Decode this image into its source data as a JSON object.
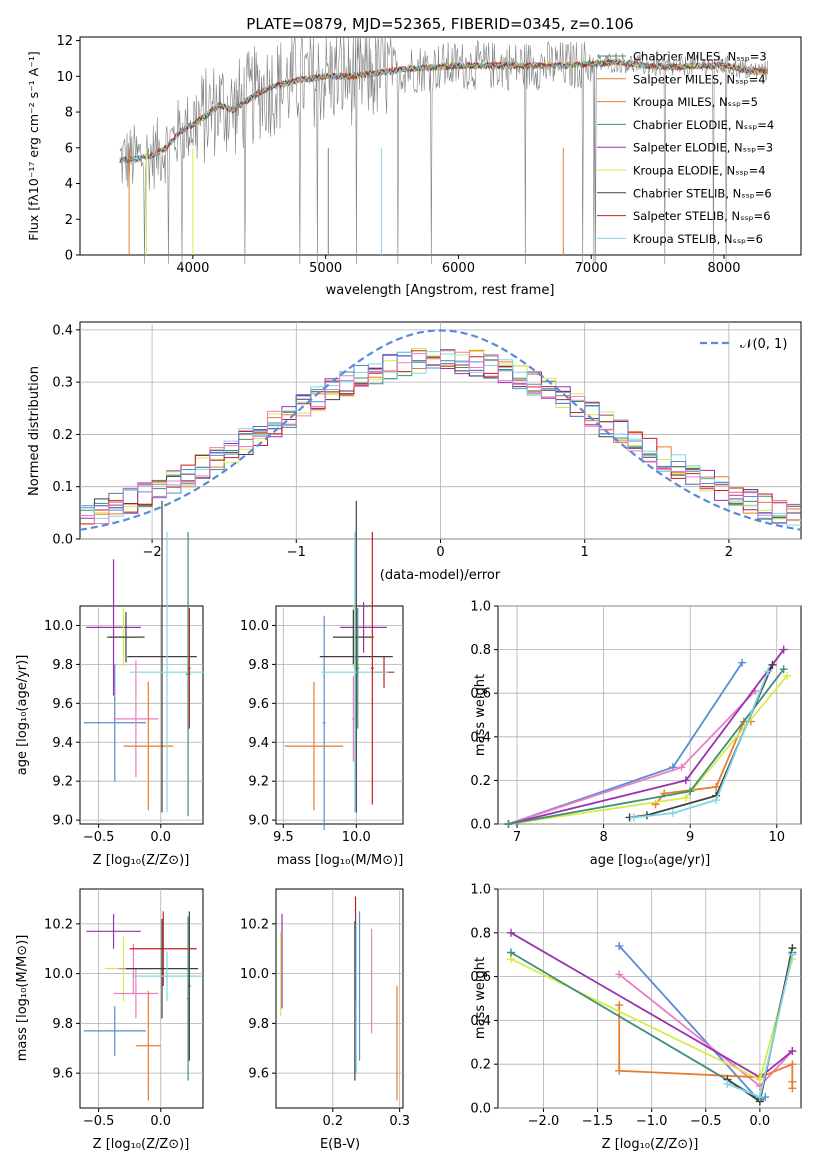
{
  "figure_title": "PLATE=0879, MJD=52365, FIBERID=0345, z=0.106",
  "colors": {
    "gray": "#808080",
    "orange": "#e87d2b",
    "teal": "#3f8f7a",
    "purple": "#9b30b0",
    "yellow": "#d6ec48",
    "dark": "#404040",
    "red": "#c41e1e",
    "cyan": "#7fd8e6",
    "blue": "#5b8bd8",
    "pink": "#e87fc0"
  },
  "chart_data": [
    {
      "id": "spectrum",
      "type": "line",
      "xlabel": "wavelength [Angstrom, rest frame]",
      "ylabel": "Flux [fλ10⁻¹⁷ erg cm⁻² s⁻¹ A⁻¹]",
      "xlim": [
        3150,
        8580
      ],
      "ylim": [
        0,
        12.2
      ],
      "xticks": [
        4000,
        5000,
        6000,
        7000,
        8000
      ],
      "yticks": [
        0,
        2,
        4,
        6,
        8,
        10,
        12
      ],
      "grid": false,
      "legend_position": "right",
      "data_x": [
        3450,
        3600,
        3700,
        3800,
        3900,
        4000,
        4100,
        4200,
        4300,
        4400,
        4500,
        4600,
        4800,
        5000,
        5200,
        5400,
        5600,
        5800,
        6000,
        6200,
        6400,
        6600,
        6800,
        7000,
        7200,
        7400,
        7600,
        7800,
        8000,
        8200,
        8330
      ],
      "data_y": [
        5.3,
        5.4,
        5.6,
        6.0,
        6.9,
        7.3,
        7.8,
        8.4,
        8.1,
        8.6,
        9.1,
        9.4,
        9.8,
        10.0,
        10.0,
        10.2,
        10.4,
        10.5,
        10.6,
        10.6,
        10.6,
        10.6,
        10.6,
        10.7,
        10.8,
        10.6,
        10.5,
        10.6,
        10.6,
        10.3,
        10.3
      ],
      "series": [
        {
          "name": "Chabrier MILES, Nₛₛₚ=3",
          "color": "teal",
          "start": 3450
        },
        {
          "name": "Salpeter MILES, Nₛₛₚ=4",
          "color": "orange",
          "start": 3700
        },
        {
          "name": "Kroupa MILES, Nₛₛₚ=5",
          "color": "orange",
          "start": 3700
        },
        {
          "name": "Chabrier ELODIE, Nₛₛₚ=4",
          "color": "teal",
          "start": 3900
        },
        {
          "name": "Salpeter ELODIE, Nₛₛₚ=3",
          "color": "purple",
          "start": 3900
        },
        {
          "name": "Kroupa ELODIE, Nₛₛₚ=4",
          "color": "yellow",
          "start": 3900
        },
        {
          "name": "Chabrier STELIB, Nₛₛₚ=6",
          "color": "dark",
          "start": 3450
        },
        {
          "name": "Salpeter STELIB, Nₛₛₚ=6",
          "color": "red",
          "start": 3450
        },
        {
          "name": "Kroupa STELIB, Nₛₛₚ=6",
          "color": "cyan",
          "start": 3450
        }
      ]
    },
    {
      "id": "residuals",
      "type": "bar",
      "xlabel": "(data-model)/error",
      "ylabel": "Normed distribution",
      "xlim": [
        -2.5,
        2.5
      ],
      "ylim": [
        0,
        0.415
      ],
      "xticks": [
        -2,
        -1,
        0,
        1,
        2
      ],
      "yticks": [
        0.0,
        0.1,
        0.2,
        0.3,
        0.4
      ],
      "grid": true,
      "legend_position": "top-right",
      "legend_label": "𝒩(0, 1)",
      "bins": 50,
      "bin_width": 0.1,
      "series_colors": [
        "orange",
        "teal",
        "purple",
        "yellow",
        "dark",
        "red",
        "cyan",
        "blue",
        "pink"
      ]
    },
    {
      "id": "age-vs-Z",
      "type": "scatter",
      "xlabel": "Z [log₁₀(Z/Z⊙)]",
      "ylabel": "age  [log₁₀(age/yr)]",
      "xlim": [
        -0.65,
        0.34
      ],
      "ylim": [
        8.98,
        10.1
      ],
      "xticks": [
        -0.5,
        0.0
      ],
      "yticks": [
        9.0,
        9.2,
        9.4,
        9.6,
        9.8,
        10.0
      ],
      "grid": true,
      "points": [
        {
          "x": -0.38,
          "y": 9.99,
          "xerr": 0.22,
          "yerr": 0.35,
          "color": "purple"
        },
        {
          "x": -0.3,
          "y": 9.94,
          "xerr": 0.14,
          "yerr": 0.15,
          "color": "yellow"
        },
        {
          "x": -0.28,
          "y": 9.94,
          "xerr": 0.15,
          "yerr": 0.13,
          "color": "dark"
        },
        {
          "x": -0.37,
          "y": 9.5,
          "xerr": 0.25,
          "yerr": 0.3,
          "color": "blue"
        },
        {
          "x": -0.2,
          "y": 9.52,
          "xerr": 0.18,
          "yerr": 0.3,
          "color": "pink"
        },
        {
          "x": -0.1,
          "y": 9.38,
          "xerr": 0.2,
          "yerr": 0.33,
          "color": "orange"
        },
        {
          "x": 0.01,
          "y": 9.84,
          "xerr": 0.28,
          "yerr": 0.8,
          "color": "dark"
        },
        {
          "x": 0.05,
          "y": 9.76,
          "xerr": 0.3,
          "yerr": 0.72,
          "color": "cyan"
        },
        {
          "x": 0.22,
          "y": 9.75,
          "xerr": 0.02,
          "yerr": 0.73,
          "color": "teal"
        },
        {
          "x": 0.23,
          "y": 9.78,
          "xerr": 0.01,
          "yerr": 0.31,
          "color": "red"
        }
      ]
    },
    {
      "id": "age-vs-mass",
      "type": "scatter",
      "xlabel": "mass [log₁₀(M/M⊙)]",
      "ylabel": "",
      "xlim": [
        9.45,
        10.32
      ],
      "ylim": [
        8.98,
        10.1
      ],
      "xticks": [
        9.5,
        10.0
      ],
      "yticks": [
        9.0,
        9.2,
        9.4,
        9.6,
        9.8,
        10.0
      ],
      "grid": true,
      "points": [
        {
          "x": 9.98,
          "y": 9.94,
          "xerr": 0.13,
          "yerr": 0.16,
          "color": "yellow"
        },
        {
          "x": 10.05,
          "y": 9.99,
          "xerr": 0.16,
          "yerr": 0.13,
          "color": "purple"
        },
        {
          "x": 9.98,
          "y": 9.94,
          "xerr": 0.14,
          "yerr": 0.14,
          "color": "dark"
        },
        {
          "x": 10.19,
          "y": 9.76,
          "xerr": 0.07,
          "yerr": 0.08,
          "color": "red"
        },
        {
          "x": 9.78,
          "y": 9.5,
          "xerr": 0.01,
          "yerr": 0.55,
          "color": "blue"
        },
        {
          "x": 9.98,
          "y": 9.52,
          "xerr": 0.01,
          "yerr": 0.22,
          "color": "pink"
        },
        {
          "x": 9.71,
          "y": 9.38,
          "xerr": 0.2,
          "yerr": 0.33,
          "color": "orange"
        },
        {
          "x": 10.0,
          "y": 9.84,
          "xerr": 0.25,
          "yerr": 0.8,
          "color": "dark"
        },
        {
          "x": 9.99,
          "y": 9.76,
          "xerr": 0.23,
          "yerr": 0.72,
          "color": "cyan"
        },
        {
          "x": 10.01,
          "y": 9.78,
          "xerr": 0.01,
          "yerr": 0.31,
          "color": "teal"
        },
        {
          "x": 10.11,
          "y": 9.78,
          "xerr": 0.01,
          "yerr": 0.7,
          "color": "red"
        }
      ]
    },
    {
      "id": "weight-vs-age",
      "type": "line",
      "xlabel": "age  [log₁₀(age/yr)]",
      "ylabel": "mass weight",
      "xlim": [
        6.78,
        10.28
      ],
      "ylim": [
        0,
        1.0
      ],
      "xticks": [
        7,
        8,
        9,
        10
      ],
      "yticks": [
        0.0,
        0.2,
        0.4,
        0.6,
        0.8,
        1.0
      ],
      "grid": true,
      "series": [
        {
          "color": "blue",
          "x": [
            6.9,
            8.8,
            9.6
          ],
          "y": [
            0.0,
            0.26,
            0.74
          ]
        },
        {
          "color": "pink",
          "x": [
            6.9,
            8.9,
            9.75
          ],
          "y": [
            0.0,
            0.26,
            0.61
          ]
        },
        {
          "color": "purple",
          "x": [
            6.9,
            8.95,
            10.08
          ],
          "y": [
            0.0,
            0.2,
            0.8
          ]
        },
        {
          "color": "orange",
          "x": [
            8.6,
            8.7,
            9.3,
            9.62,
            9.7
          ],
          "y": [
            0.09,
            0.14,
            0.17,
            0.47,
            0.47
          ]
        },
        {
          "color": "yellow",
          "x": [
            6.9,
            8.95,
            10.12
          ],
          "y": [
            0.0,
            0.12,
            0.68
          ]
        },
        {
          "color": "teal",
          "x": [
            6.9,
            9.0,
            10.08
          ],
          "y": [
            0.0,
            0.15,
            0.71
          ]
        },
        {
          "color": "dark",
          "x": [
            8.3,
            8.5,
            9.3,
            9.95
          ],
          "y": [
            0.03,
            0.04,
            0.13,
            0.73
          ]
        },
        {
          "color": "cyan",
          "x": [
            8.35,
            8.8,
            9.3,
            9.9
          ],
          "y": [
            0.03,
            0.05,
            0.11,
            0.7
          ]
        }
      ]
    },
    {
      "id": "mass-vs-Z",
      "type": "scatter",
      "xlabel": "Z [log₁₀(Z/Z⊙)]",
      "ylabel": "mass [log₁₀(M/M⊙)]",
      "xlim": [
        -0.65,
        0.34
      ],
      "ylim": [
        9.46,
        10.34
      ],
      "xticks": [
        -0.5,
        0.0
      ],
      "yticks": [
        9.6,
        9.8,
        10.0,
        10.2
      ],
      "grid": true,
      "points": [
        {
          "x": -0.38,
          "y": 10.17,
          "xerr": 0.22,
          "yerr": 0.07,
          "color": "purple"
        },
        {
          "x": -0.3,
          "y": 10.02,
          "xerr": 0.15,
          "yerr": 0.13,
          "color": "yellow"
        },
        {
          "x": -0.22,
          "y": 10.02,
          "xerr": 0.12,
          "yerr": 0.1,
          "color": "pink"
        },
        {
          "x": -0.2,
          "y": 9.92,
          "xerr": 0.18,
          "yerr": 0.1,
          "color": "pink"
        },
        {
          "x": -0.37,
          "y": 9.77,
          "xerr": 0.25,
          "yerr": 0.1,
          "color": "blue"
        },
        {
          "x": -0.1,
          "y": 9.71,
          "xerr": 0.1,
          "yerr": 0.22,
          "color": "orange"
        },
        {
          "x": 0.02,
          "y": 10.1,
          "xerr": 0.27,
          "yerr": 0.15,
          "color": "red"
        },
        {
          "x": 0.01,
          "y": 10.02,
          "xerr": 0.29,
          "yerr": 0.2,
          "color": "dark"
        },
        {
          "x": 0.05,
          "y": 9.99,
          "xerr": 0.28,
          "yerr": 0.1,
          "color": "cyan"
        },
        {
          "x": 0.22,
          "y": 9.9,
          "xerr": 0.01,
          "yerr": 0.33,
          "color": "teal"
        },
        {
          "x": 0.23,
          "y": 9.95,
          "xerr": 0.01,
          "yerr": 0.3,
          "color": "dark"
        }
      ]
    },
    {
      "id": "mass-vs-ebv",
      "type": "scatter",
      "xlabel": "E(B-V)",
      "ylabel": "",
      "xlim": [
        0.115,
        0.305
      ],
      "ylim": [
        9.46,
        10.34
      ],
      "xticks": [
        0.2,
        0.3
      ],
      "yticks": [
        9.6,
        9.8,
        10.0,
        10.2
      ],
      "grid": true,
      "points": [
        {
          "x": 0.124,
          "y": 10.05,
          "xerr": 0,
          "yerr": 0.19,
          "color": "purple"
        },
        {
          "x": 0.122,
          "y": 10.0,
          "xerr": 0,
          "yerr": 0.17,
          "color": "yellow"
        },
        {
          "x": 0.234,
          "y": 10.1,
          "xerr": 0,
          "yerr": 0.21,
          "color": "red"
        },
        {
          "x": 0.233,
          "y": 9.89,
          "xerr": 0,
          "yerr": 0.32,
          "color": "dark"
        },
        {
          "x": 0.235,
          "y": 9.9,
          "xerr": 0,
          "yerr": 0.3,
          "color": "cyan"
        },
        {
          "x": 0.24,
          "y": 9.95,
          "xerr": 0,
          "yerr": 0.3,
          "color": "blue"
        },
        {
          "x": 0.258,
          "y": 9.97,
          "xerr": 0,
          "yerr": 0.21,
          "color": "pink"
        },
        {
          "x": 0.296,
          "y": 9.72,
          "xerr": 0,
          "yerr": 0.23,
          "color": "orange"
        }
      ]
    },
    {
      "id": "weight-vs-Z",
      "type": "line",
      "xlabel": "Z [log₁₀(Z/Z⊙)]",
      "ylabel": "mass weight",
      "xlim": [
        -2.42,
        0.38
      ],
      "ylim": [
        0,
        1.0
      ],
      "xticks": [
        -2.0,
        -1.5,
        -1.0,
        -0.5,
        0.0
      ],
      "yticks": [
        0.0,
        0.2,
        0.4,
        0.6,
        0.8,
        1.0
      ],
      "grid": true,
      "series": [
        {
          "color": "blue",
          "x": [
            -1.3,
            0.0,
            0.05
          ],
          "y": [
            0.74,
            0.03,
            0.05
          ]
        },
        {
          "color": "pink",
          "x": [
            -1.3,
            0.0,
            0.3
          ],
          "y": [
            0.61,
            0.1,
            0.26
          ]
        },
        {
          "color": "purple",
          "x": [
            -2.3,
            0.0,
            0.3
          ],
          "y": [
            0.8,
            0.14,
            0.26
          ]
        },
        {
          "color": "orange",
          "x": [
            -1.3,
            -1.3,
            0.0,
            0.3,
            0.3,
            0.3
          ],
          "y": [
            0.47,
            0.17,
            0.14,
            0.2,
            0.12,
            0.09
          ]
        },
        {
          "color": "yellow",
          "x": [
            -2.3,
            0.0,
            0.3
          ],
          "y": [
            0.68,
            0.13,
            0.68
          ]
        },
        {
          "color": "teal",
          "x": [
            -2.3,
            0.0,
            0.3
          ],
          "y": [
            0.71,
            0.04,
            0.71
          ]
        },
        {
          "color": "dark",
          "x": [
            -0.3,
            0.0,
            0.3
          ],
          "y": [
            0.13,
            0.03,
            0.73
          ]
        },
        {
          "color": "cyan",
          "x": [
            -0.3,
            0.0,
            0.3
          ],
          "y": [
            0.11,
            0.05,
            0.7
          ]
        }
      ]
    }
  ]
}
